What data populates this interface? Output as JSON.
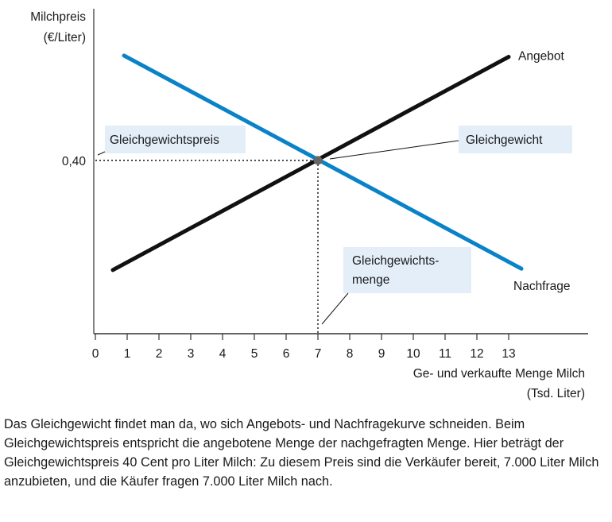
{
  "chart_data": {
    "type": "line",
    "ylabel": [
      "Milchpreis",
      "(€/Liter)"
    ],
    "xlabel": [
      "Ge- und verkaufte Menge Milch",
      "(Tsd. Liter)"
    ],
    "x_ticks": [
      "0",
      "1",
      "2",
      "3",
      "4",
      "5",
      "6",
      "7",
      "8",
      "9",
      "10",
      "11",
      "12",
      "13"
    ],
    "y_ticks": [
      {
        "value": 0.4,
        "label": "0,40"
      }
    ],
    "xlim": [
      0,
      15.5
    ],
    "ylim": [
      0,
      0.75
    ],
    "grid": false,
    "series": [
      {
        "name": "Angebot",
        "color": "#111111",
        "points": [
          [
            0.55,
            0.147
          ],
          [
            13.0,
            0.639
          ]
        ]
      },
      {
        "name": "Nachfrage",
        "color": "#0a82c8",
        "points": [
          [
            0.9,
            0.642
          ],
          [
            13.4,
            0.15
          ]
        ]
      }
    ],
    "equilibrium": {
      "x": 7,
      "y": 0.4,
      "color": "#666666"
    },
    "annotations": {
      "price": "Gleichgewichtspreis",
      "equilibrium": "Gleichgewicht",
      "quantity": [
        "Gleichgewichts-",
        "menge"
      ]
    },
    "label_bg": "#e4eef9"
  },
  "caption": "Das Gleichgewicht findet man da, wo sich Angebots- und Nachfragekurve schneiden. Beim Gleichgewichtspreis entspricht die angebotene Menge der nachgefragten Menge. Hier beträgt der Gleichgewichtspreis 40 Cent pro Liter Milch: Zu diesem Preis sind die Verkäufer bereit, 7.000 Liter Milch anzubieten, und die Käufer fragen 7.000 Liter Milch nach."
}
